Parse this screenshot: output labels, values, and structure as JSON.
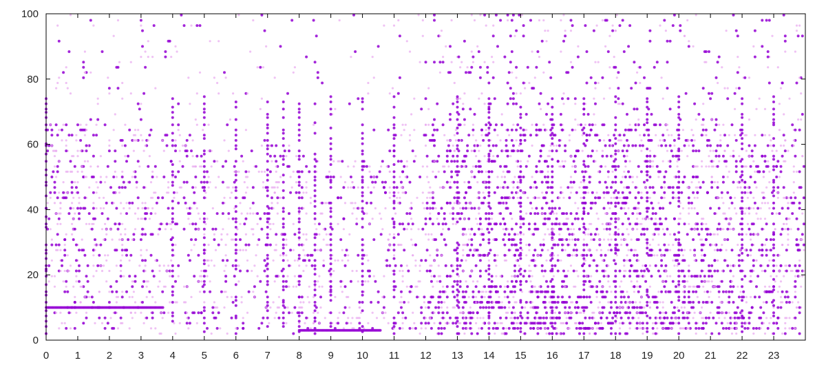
{
  "chart_data": {
    "type": "scatter",
    "title": "",
    "xlabel": "",
    "ylabel": "",
    "xlim": [
      0,
      24
    ],
    "ylim": [
      0,
      100
    ],
    "x_ticks": [
      "0",
      "1",
      "2",
      "3",
      "4",
      "5",
      "6",
      "7",
      "8",
      "9",
      "10",
      "11",
      "12",
      "13",
      "14",
      "15",
      "16",
      "17",
      "18",
      "19",
      "20",
      "21",
      "22",
      "23"
    ],
    "y_ticks": [
      "0",
      "20",
      "40",
      "60",
      "80",
      "100"
    ],
    "grid": false,
    "legend": "none",
    "colors": {
      "point": "#9400d3",
      "point_light": "#e8a8f0",
      "axis": "#000000"
    },
    "notes": "Dense scatter of thousands of points; values are an approximate summary of the density pattern.",
    "series": [
      {
        "hours": [
          0,
          1,
          2,
          3,
          4,
          5,
          6,
          7,
          8,
          9,
          10,
          11,
          12,
          13,
          14,
          15,
          16,
          17,
          18,
          19,
          20,
          21,
          22,
          23
        ],
        "relative_density": [
          0.45,
          0.4,
          0.4,
          0.35,
          0.25,
          0.2,
          0.2,
          0.25,
          0.2,
          0.15,
          0.15,
          0.35,
          0.7,
          0.95,
          0.9,
          0.9,
          0.8,
          0.85,
          0.9,
          0.8,
          0.75,
          0.7,
          0.6,
          0.55
        ],
        "typical_range": [
          [
            2,
            66
          ],
          [
            2,
            66
          ],
          [
            2,
            66
          ],
          [
            2,
            66
          ],
          [
            2,
            66
          ],
          [
            2,
            60
          ],
          [
            2,
            60
          ],
          [
            2,
            60
          ],
          [
            2,
            55
          ],
          [
            2,
            55
          ],
          [
            2,
            55
          ],
          [
            2,
            66
          ],
          [
            2,
            66
          ],
          [
            2,
            66
          ],
          [
            2,
            66
          ],
          [
            2,
            66
          ],
          [
            2,
            66
          ],
          [
            2,
            66
          ],
          [
            2,
            66
          ],
          [
            2,
            66
          ],
          [
            2,
            66
          ],
          [
            2,
            66
          ],
          [
            2,
            66
          ],
          [
            2,
            66
          ]
        ]
      }
    ],
    "features": {
      "horizontal_line_y10_x_range": [
        0,
        3.7
      ],
      "horizontal_line_y3_x_range": [
        8,
        10.6
      ],
      "vertical_stripes_x": [
        0,
        4,
        5,
        6,
        7,
        7.5,
        8,
        8.5,
        9,
        10,
        11,
        13,
        14,
        15,
        16,
        17,
        18,
        19,
        20,
        22,
        23
      ]
    }
  }
}
